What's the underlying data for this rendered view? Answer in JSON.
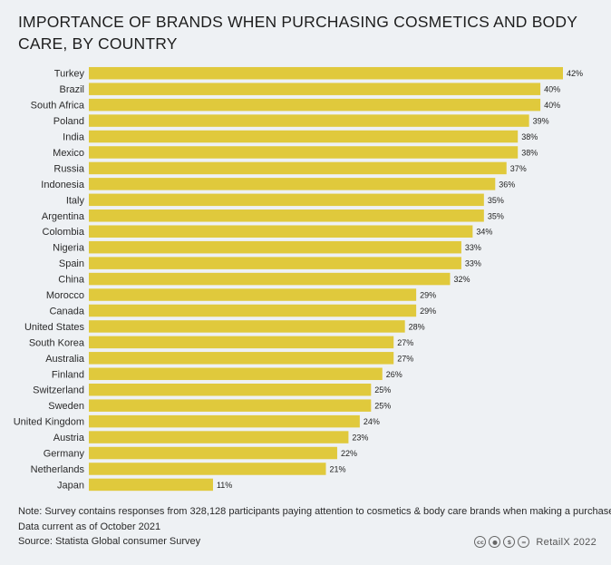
{
  "title": "IMPORTANCE OF BRANDS WHEN PURCHASING COSMETICS AND BODY CARE, BY COUNTRY",
  "colors": {
    "bar": "#e0c93c",
    "background": "#eef1f4"
  },
  "chart_data": {
    "type": "bar",
    "orientation": "horizontal",
    "title": "IMPORTANCE OF BRANDS WHEN PURCHASING COSMETICS AND BODY CARE, BY COUNTRY",
    "xlabel": "",
    "ylabel": "",
    "xlim": [
      0,
      42
    ],
    "grid": false,
    "value_suffix": "%",
    "categories": [
      "Turkey",
      "Brazil",
      "South Africa",
      "Poland",
      "India",
      "Mexico",
      "Russia",
      "Indonesia",
      "Italy",
      "Argentina",
      "Colombia",
      "Nigeria",
      "Spain",
      "China",
      "Morocco",
      "Canada",
      "United States",
      "South Korea",
      "Australia",
      "Finland",
      "Switzerland",
      "Sweden",
      "United Kingdom",
      "Austria",
      "Germany",
      "Netherlands",
      "Japan"
    ],
    "values": [
      42,
      40,
      40,
      39,
      38,
      38,
      37,
      36,
      35,
      35,
      34,
      33,
      33,
      32,
      29,
      29,
      28,
      27,
      27,
      26,
      25,
      25,
      24,
      23,
      22,
      21,
      11
    ]
  },
  "footer": {
    "note": "Note: Survey contains responses from 328,128 participants paying attention to cosmetics & body care brands when making a purchase.",
    "data_current": "Data current as of October 2021",
    "source": "Source: Statista Global consumer Survey"
  },
  "brand": {
    "icons": [
      "cc-icon",
      "by-icon",
      "nc-icon",
      "nd-icon"
    ],
    "icon_glyphs": [
      "cc",
      "●",
      "$",
      "="
    ],
    "text": "RetailX 2022"
  }
}
